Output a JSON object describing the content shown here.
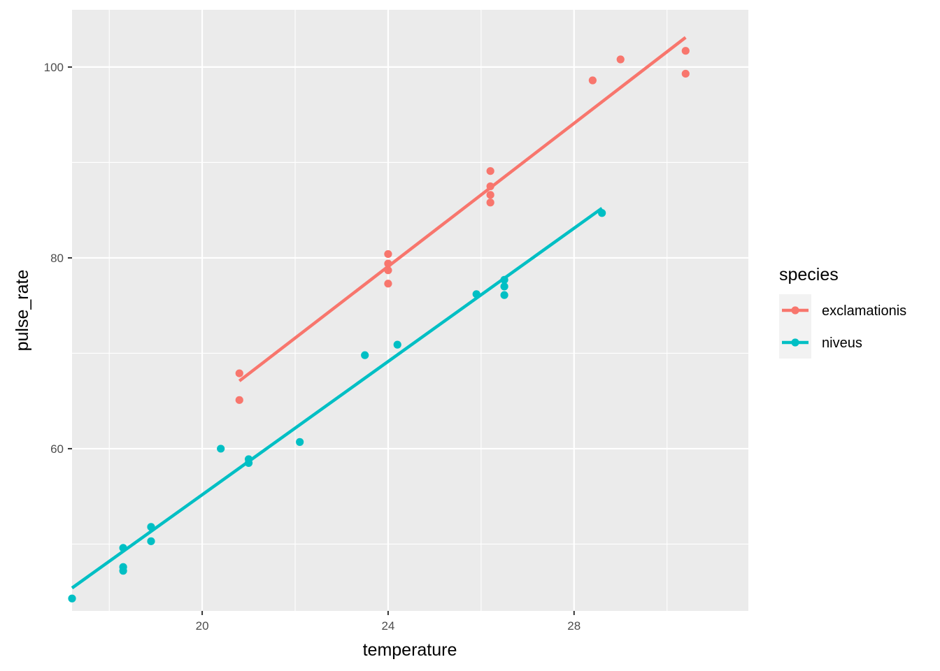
{
  "chart_data": {
    "type": "scatter",
    "xlabel": "temperature",
    "ylabel": "pulse_rate",
    "xlim": [
      17.2,
      31.75
    ],
    "ylim": [
      43.0,
      106.0
    ],
    "x_ticks": [
      20,
      24,
      28
    ],
    "x_tick_labels": [
      "20",
      "24",
      "28"
    ],
    "y_ticks": [
      60,
      80,
      100
    ],
    "y_tick_labels": [
      "60",
      "80",
      "100"
    ],
    "grid": true,
    "legend": {
      "title": "species",
      "position": "right"
    },
    "series": [
      {
        "name": "exclamationis",
        "color": "#F8766D",
        "points": [
          [
            20.8,
            67.9
          ],
          [
            20.8,
            65.1
          ],
          [
            24.0,
            77.3
          ],
          [
            24.0,
            78.7
          ],
          [
            24.0,
            79.4
          ],
          [
            24.0,
            80.4
          ],
          [
            26.2,
            85.8
          ],
          [
            26.2,
            86.6
          ],
          [
            26.2,
            87.5
          ],
          [
            26.2,
            89.1
          ],
          [
            28.4,
            98.6
          ],
          [
            29.0,
            100.8
          ],
          [
            30.4,
            99.3
          ],
          [
            30.4,
            101.7
          ]
        ],
        "fit": {
          "x": [
            20.8,
            30.4
          ],
          "y": [
            67.1,
            103.1
          ]
        }
      },
      {
        "name": "niveus",
        "color": "#00BFC4",
        "points": [
          [
            17.2,
            44.3
          ],
          [
            18.3,
            47.2
          ],
          [
            18.3,
            47.6
          ],
          [
            18.3,
            49.6
          ],
          [
            18.9,
            50.3
          ],
          [
            18.9,
            51.8
          ],
          [
            20.4,
            60.0
          ],
          [
            21.0,
            58.5
          ],
          [
            21.0,
            58.9
          ],
          [
            22.1,
            60.7
          ],
          [
            23.5,
            69.8
          ],
          [
            24.2,
            70.9
          ],
          [
            25.9,
            76.2
          ],
          [
            26.5,
            76.1
          ],
          [
            26.5,
            77.0
          ],
          [
            26.5,
            77.7
          ],
          [
            28.6,
            84.7
          ]
        ],
        "fit": {
          "x": [
            17.2,
            28.6
          ],
          "y": [
            45.4,
            85.2
          ]
        }
      }
    ]
  }
}
